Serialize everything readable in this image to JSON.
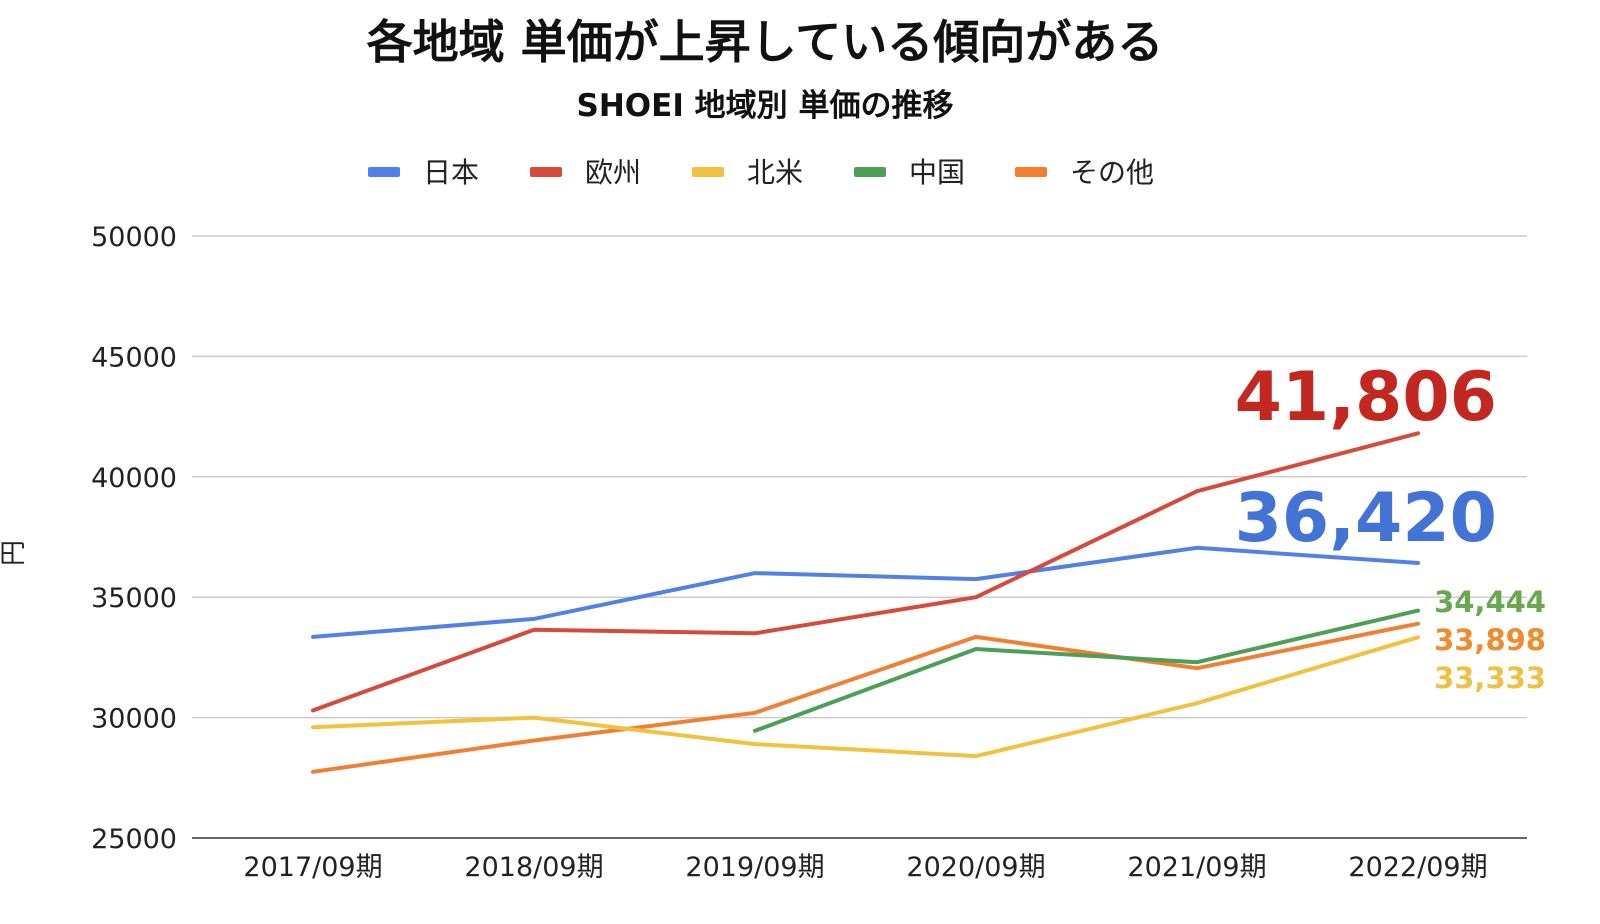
{
  "chart_data": {
    "type": "line",
    "title": "各地域 単価が上昇している傾向がある",
    "subtitle": "SHOEI 地域別 単価の推移",
    "ylabel": "円",
    "xlabel": "",
    "ylim": [
      25000,
      50000
    ],
    "yticks": [
      25000,
      30000,
      35000,
      40000,
      45000,
      50000
    ],
    "ytick_labels": [
      "25000",
      "30000",
      "35000",
      "40000",
      "45000",
      "50000"
    ],
    "grid": true,
    "legend_position": "top",
    "categories": [
      "2017/09期",
      "2018/09期",
      "2019/09期",
      "2020/09期",
      "2021/09期",
      "2022/09期"
    ],
    "series": [
      {
        "name": "日本",
        "color": "#4f81e8",
        "values": [
          33350,
          34100,
          36000,
          35750,
          37050,
          36420
        ]
      },
      {
        "name": "欧州",
        "color": "#d64a3c",
        "values": [
          30300,
          33650,
          33500,
          35000,
          39400,
          41806
        ]
      },
      {
        "name": "北米",
        "color": "#f2c23e",
        "values": [
          29600,
          30000,
          28900,
          28400,
          30600,
          33333
        ]
      },
      {
        "name": "中国",
        "color": "#4c9f55",
        "values": [
          null,
          null,
          29450,
          32850,
          32300,
          34444
        ]
      },
      {
        "name": "その他",
        "color": "#f07f32",
        "values": [
          27750,
          29050,
          30200,
          33350,
          32050,
          33898
        ]
      }
    ],
    "annotations": [
      {
        "series": "欧州",
        "text": "41,806",
        "color": "#c2281f",
        "size": "large"
      },
      {
        "series": "日本",
        "text": "36,420",
        "color": "#4473d6",
        "size": "large"
      },
      {
        "series": "中国",
        "text": "34,444",
        "color": "#6aa84f",
        "size": "small"
      },
      {
        "series": "その他",
        "text": "33,898",
        "color": "#ee8c2e",
        "size": "small"
      },
      {
        "series": "北米",
        "text": "33,333",
        "color": "#f0c040",
        "size": "small"
      }
    ]
  }
}
